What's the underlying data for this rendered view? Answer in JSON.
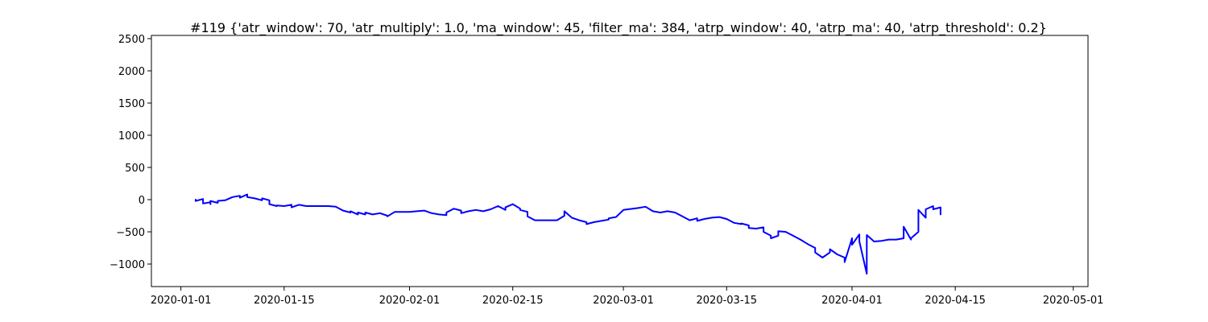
{
  "chart_data": {
    "type": "line",
    "title": "#119 {'atr_window': 70, 'atr_multiply': 1.0, 'ma_window': 45, 'filter_ma': 384, 'atrp_window': 40, 'atrp_ma': 40, 'atrp_threshold': 0.2}",
    "xlabel": "",
    "ylabel": "",
    "x_type": "date",
    "xlim": [
      "2019-12-28",
      "2020-05-03"
    ],
    "ylim": [
      -1350,
      2550
    ],
    "x_ticks": [
      "2020-01-01",
      "2020-01-15",
      "2020-02-01",
      "2020-02-15",
      "2020-03-01",
      "2020-03-15",
      "2020-04-01",
      "2020-04-15",
      "2020-05-01"
    ],
    "y_ticks": [
      -1000,
      -500,
      0,
      500,
      1000,
      1500,
      2000,
      2500
    ],
    "grid": false,
    "series": [
      {
        "color": "#0000ff",
        "points": [
          [
            "2020-01-03",
            0
          ],
          [
            "2020-01-03",
            -20
          ],
          [
            "2020-01-04",
            10
          ],
          [
            "2020-01-04",
            -60
          ],
          [
            "2020-01-05",
            -40
          ],
          [
            "2020-01-05",
            -70
          ],
          [
            "2020-01-05",
            -20
          ],
          [
            "2020-01-06",
            -50
          ],
          [
            "2020-01-06",
            -20
          ],
          [
            "2020-01-07",
            -10
          ],
          [
            "2020-01-08",
            40
          ],
          [
            "2020-01-09",
            60
          ],
          [
            "2020-01-09",
            30
          ],
          [
            "2020-01-10",
            80
          ],
          [
            "2020-01-10",
            40
          ],
          [
            "2020-01-11",
            20
          ],
          [
            "2020-01-12",
            -10
          ],
          [
            "2020-01-12",
            20
          ],
          [
            "2020-01-13",
            -10
          ],
          [
            "2020-01-13",
            -70
          ],
          [
            "2020-01-14",
            -100
          ],
          [
            "2020-01-14",
            -90
          ],
          [
            "2020-01-15",
            -100
          ],
          [
            "2020-01-16",
            -80
          ],
          [
            "2020-01-16",
            -120
          ],
          [
            "2020-01-17",
            -80
          ],
          [
            "2020-01-18",
            -100
          ],
          [
            "2020-01-19",
            -100
          ],
          [
            "2020-01-21",
            -100
          ],
          [
            "2020-01-22",
            -110
          ],
          [
            "2020-01-23",
            -170
          ],
          [
            "2020-01-24",
            -200
          ],
          [
            "2020-01-24",
            -180
          ],
          [
            "2020-01-25",
            -230
          ],
          [
            "2020-01-25",
            -200
          ],
          [
            "2020-01-26",
            -230
          ],
          [
            "2020-01-26",
            -200
          ],
          [
            "2020-01-27",
            -230
          ],
          [
            "2020-01-28",
            -210
          ],
          [
            "2020-01-29",
            -250
          ],
          [
            "2020-01-29",
            -260
          ],
          [
            "2020-01-30",
            -190
          ],
          [
            "2020-02-01",
            -190
          ],
          [
            "2020-02-02",
            -180
          ],
          [
            "2020-02-03",
            -170
          ],
          [
            "2020-02-04",
            -210
          ],
          [
            "2020-02-05",
            -230
          ],
          [
            "2020-02-06",
            -240
          ],
          [
            "2020-02-06",
            -200
          ],
          [
            "2020-02-07",
            -140
          ],
          [
            "2020-02-08",
            -170
          ],
          [
            "2020-02-08",
            -210
          ],
          [
            "2020-02-09",
            -180
          ],
          [
            "2020-02-10",
            -160
          ],
          [
            "2020-02-11",
            -180
          ],
          [
            "2020-02-12",
            -150
          ],
          [
            "2020-02-13",
            -100
          ],
          [
            "2020-02-14",
            -160
          ],
          [
            "2020-02-14",
            -120
          ],
          [
            "2020-02-15",
            -70
          ],
          [
            "2020-02-16",
            -140
          ],
          [
            "2020-02-16",
            -160
          ],
          [
            "2020-02-17",
            -190
          ],
          [
            "2020-02-17",
            -260
          ],
          [
            "2020-02-18",
            -320
          ],
          [
            "2020-02-20",
            -320
          ],
          [
            "2020-02-21",
            -320
          ],
          [
            "2020-02-22",
            -250
          ],
          [
            "2020-02-22",
            -180
          ],
          [
            "2020-02-23",
            -280
          ],
          [
            "2020-02-24",
            -320
          ],
          [
            "2020-02-25",
            -350
          ],
          [
            "2020-02-25",
            -380
          ],
          [
            "2020-02-26",
            -350
          ],
          [
            "2020-02-27",
            -330
          ],
          [
            "2020-02-28",
            -310
          ],
          [
            "2020-02-28",
            -290
          ],
          [
            "2020-02-29",
            -270
          ],
          [
            "2020-03-01",
            -160
          ],
          [
            "2020-03-03",
            -130
          ],
          [
            "2020-03-04",
            -110
          ],
          [
            "2020-03-05",
            -180
          ],
          [
            "2020-03-06",
            -200
          ],
          [
            "2020-03-07",
            -180
          ],
          [
            "2020-03-08",
            -200
          ],
          [
            "2020-03-09",
            -260
          ],
          [
            "2020-03-10",
            -320
          ],
          [
            "2020-03-11",
            -290
          ],
          [
            "2020-03-11",
            -330
          ],
          [
            "2020-03-12",
            -300
          ],
          [
            "2020-03-13",
            -280
          ],
          [
            "2020-03-14",
            -270
          ],
          [
            "2020-03-15",
            -300
          ],
          [
            "2020-03-16",
            -360
          ],
          [
            "2020-03-17",
            -380
          ],
          [
            "2020-03-17",
            -370
          ],
          [
            "2020-03-18",
            -400
          ],
          [
            "2020-03-18",
            -440
          ],
          [
            "2020-03-19",
            -450
          ],
          [
            "2020-03-20",
            -430
          ],
          [
            "2020-03-20",
            -500
          ],
          [
            "2020-03-21",
            -560
          ],
          [
            "2020-03-21",
            -600
          ],
          [
            "2020-03-22",
            -560
          ],
          [
            "2020-03-22",
            -490
          ],
          [
            "2020-03-23",
            -500
          ],
          [
            "2020-03-24",
            -560
          ],
          [
            "2020-03-25",
            -620
          ],
          [
            "2020-03-26",
            -690
          ],
          [
            "2020-03-27",
            -750
          ],
          [
            "2020-03-27",
            -820
          ],
          [
            "2020-03-28",
            -900
          ],
          [
            "2020-03-29",
            -820
          ],
          [
            "2020-03-29",
            -770
          ],
          [
            "2020-03-30",
            -850
          ],
          [
            "2020-03-31",
            -900
          ],
          [
            "2020-03-31",
            -970
          ],
          [
            "2020-04-01",
            -600
          ],
          [
            "2020-04-01",
            -700
          ],
          [
            "2020-04-02",
            -540
          ],
          [
            "2020-04-02",
            -650
          ],
          [
            "2020-04-03",
            -1150
          ],
          [
            "2020-04-03",
            -950
          ],
          [
            "2020-04-03",
            -550
          ],
          [
            "2020-04-04",
            -650
          ],
          [
            "2020-04-05",
            -640
          ],
          [
            "2020-04-06",
            -620
          ],
          [
            "2020-04-07",
            -620
          ],
          [
            "2020-04-08",
            -600
          ],
          [
            "2020-04-08",
            -420
          ],
          [
            "2020-04-09",
            -620
          ],
          [
            "2020-04-09",
            -600
          ],
          [
            "2020-04-10",
            -500
          ],
          [
            "2020-04-10",
            -160
          ],
          [
            "2020-04-11",
            -280
          ],
          [
            "2020-04-11",
            -150
          ],
          [
            "2020-04-12",
            -100
          ],
          [
            "2020-04-12",
            -150
          ],
          [
            "2020-04-13",
            -120
          ],
          [
            "2020-04-13",
            -230
          ]
        ]
      }
    ]
  }
}
